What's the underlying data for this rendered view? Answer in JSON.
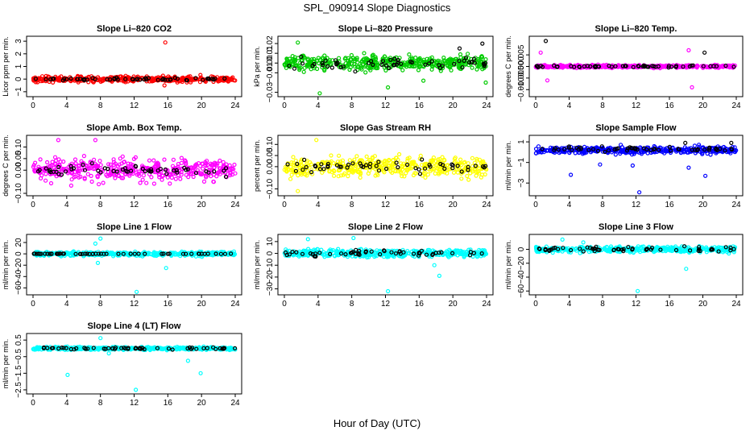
{
  "figure": {
    "title": "SPL_090914  Slope Diagnostics",
    "xlabel": "Hour of Day (UTC)"
  },
  "chart_data": [
    {
      "type": "scatter",
      "title": "Slope Li–820 CO2",
      "ylabel": "Licor ppm per min.",
      "color": "#ff0000",
      "xlim": [
        0,
        24
      ],
      "ylim": [
        -1.2,
        3.2
      ],
      "xticks": [
        "0",
        "4",
        "8",
        "12",
        "16",
        "20",
        "24"
      ],
      "xtick_values": [
        0,
        4,
        8,
        12,
        16,
        20,
        24
      ],
      "yticks": [
        "−1",
        "0",
        "1",
        "2",
        "3"
      ],
      "ytick_values": [
        -1,
        0,
        1,
        2,
        3
      ],
      "series": [
        {
          "name": "colored",
          "center": 0,
          "spread": 0.22,
          "outliers": [
            [
              15.7,
              2.9
            ],
            [
              15.6,
              -0.5
            ]
          ]
        },
        {
          "name": "black",
          "center": 0,
          "spread": 0.12,
          "outliers": []
        }
      ]
    },
    {
      "type": "scatter",
      "title": "Slope Li–820 Pressure",
      "ylabel": "kPa per min.",
      "color": "#00cc00",
      "xlim": [
        0,
        24
      ],
      "ylim": [
        -0.032,
        0.025
      ],
      "xticks": [
        "0",
        "4",
        "8",
        "12",
        "16",
        "20",
        "24"
      ],
      "xtick_values": [
        0,
        4,
        8,
        12,
        16,
        20,
        24
      ],
      "yticks": [
        "−0.03",
        "−0.01",
        "0.00",
        "0.01",
        "0.02"
      ],
      "ytick_values": [
        -0.03,
        -0.01,
        0,
        0.01,
        0.02
      ],
      "series": [
        {
          "name": "colored",
          "center": 0.0,
          "spread": 0.007,
          "outliers": [
            [
              4.2,
              -0.031
            ],
            [
              23.9,
              -0.02
            ],
            [
              12.3,
              -0.025
            ],
            [
              16.5,
              -0.018
            ],
            [
              1.6,
              0.021
            ]
          ]
        },
        {
          "name": "black",
          "center": 0.0,
          "spread": 0.006,
          "outliers": [
            [
              23.5,
              0.02
            ],
            [
              20.8,
              0.015
            ]
          ]
        }
      ]
    },
    {
      "type": "scatter",
      "title": "Slope Li–820 Temp.",
      "ylabel": "degrees C per min.",
      "color": "#ff00ff",
      "xlim": [
        0,
        24
      ],
      "ylim": [
        -0.012,
        0.012
      ],
      "xticks": [
        "0",
        "4",
        "8",
        "12",
        "16",
        "20",
        "24"
      ],
      "xtick_values": [
        0,
        4,
        8,
        12,
        16,
        20,
        24
      ],
      "yticks": [
        "−0.010",
        "−0.005",
        "0.000",
        "0.005"
      ],
      "ytick_values": [
        -0.01,
        -0.005,
        0,
        0.005
      ],
      "series": [
        {
          "name": "colored",
          "center": 0.0,
          "spread": 0.0006,
          "outliers": [
            [
              0.6,
              0.006
            ],
            [
              18.7,
              -0.009
            ],
            [
              1.4,
              -0.006
            ],
            [
              18.3,
              0.007
            ]
          ]
        },
        {
          "name": "black",
          "center": 0.0,
          "spread": 0.0004,
          "outliers": [
            [
              1.2,
              0.011
            ],
            [
              20.2,
              0.006
            ]
          ]
        }
      ]
    },
    {
      "type": "scatter",
      "title": "Slope Amb. Box Temp.",
      "ylabel": "degrees C per min.",
      "color": "#ff00ff",
      "xlim": [
        0,
        24
      ],
      "ylim": [
        -0.1,
        0.14
      ],
      "xticks": [
        "0",
        "4",
        "8",
        "12",
        "16",
        "20",
        "24"
      ],
      "xtick_values": [
        0,
        4,
        8,
        12,
        16,
        20,
        24
      ],
      "yticks": [
        "−0.10",
        "0.00",
        "0.05",
        "0.10"
      ],
      "ytick_values": [
        -0.1,
        0,
        0.05,
        0.1
      ],
      "series": [
        {
          "name": "colored",
          "center": 0.0,
          "spread": 0.045,
          "outliers": [
            [
              3.0,
              0.13
            ],
            [
              7.4,
              0.13
            ]
          ]
        },
        {
          "name": "black",
          "center": 0.0,
          "spread": 0.025,
          "outliers": []
        }
      ]
    },
    {
      "type": "scatter",
      "title": "Slope Gas Stream RH",
      "ylabel": "percent per min.",
      "color": "#ffff00",
      "xlim": [
        0,
        24
      ],
      "ylim": [
        -0.12,
        0.13
      ],
      "xticks": [
        "0",
        "4",
        "8",
        "12",
        "16",
        "20",
        "24"
      ],
      "xtick_values": [
        0,
        4,
        8,
        12,
        16,
        20,
        24
      ],
      "yticks": [
        "−0.10",
        "0.00",
        "0.05",
        "0.10"
      ],
      "ytick_values": [
        -0.1,
        0,
        0.05,
        0.1
      ],
      "series": [
        {
          "name": "colored",
          "center": 0.0,
          "spread": 0.045,
          "outliers": [
            [
              1.6,
              -0.11
            ],
            [
              3.8,
              0.12
            ]
          ]
        },
        {
          "name": "black",
          "center": 0.0,
          "spread": 0.025,
          "outliers": []
        }
      ]
    },
    {
      "type": "scatter",
      "title": "Slope Sample Flow",
      "ylabel": "ml/min per min.",
      "color": "#0000ff",
      "xlim": [
        0,
        24
      ],
      "ylim": [
        -4.0,
        1.4
      ],
      "xticks": [
        "0",
        "4",
        "8",
        "12",
        "16",
        "20",
        "24"
      ],
      "xtick_values": [
        0,
        4,
        8,
        12,
        16,
        20,
        24
      ],
      "yticks": [
        "−3",
        "−1",
        "1"
      ],
      "ytick_values": [
        -3,
        -1,
        1
      ],
      "series": [
        {
          "name": "colored",
          "center": 0.2,
          "spread": 0.35,
          "outliers": [
            [
              12.4,
              -3.9
            ],
            [
              20.3,
              -2.3
            ],
            [
              4.2,
              -2.2
            ],
            [
              7.7,
              -1.2
            ],
            [
              18.3,
              -1.5
            ],
            [
              11.6,
              -1.3
            ]
          ]
        },
        {
          "name": "black",
          "center": 0.3,
          "spread": 0.25,
          "outliers": [
            [
              23.4,
              0.9
            ],
            [
              17.9,
              0.9
            ]
          ]
        }
      ]
    },
    {
      "type": "scatter",
      "title": "Slope Line 1 Flow",
      "ylabel": "ml/min per min.",
      "color": "#00ffff",
      "xlim": [
        0,
        24
      ],
      "ylim": [
        -68,
        30
      ],
      "xticks": [
        "0",
        "4",
        "8",
        "12",
        "16",
        "20",
        "24"
      ],
      "xtick_values": [
        0,
        4,
        8,
        12,
        16,
        20,
        24
      ],
      "yticks": [
        "−60",
        "−40",
        "−20",
        "0",
        "20"
      ],
      "ytick_values": [
        -60,
        -40,
        -20,
        0,
        20
      ],
      "series": [
        {
          "name": "colored",
          "center": 0,
          "spread": 3.5,
          "outliers": [
            [
              12.3,
              -67
            ],
            [
              8.0,
              27
            ],
            [
              7.7,
              -16
            ],
            [
              15.8,
              -25
            ],
            [
              7.4,
              18
            ]
          ]
        },
        {
          "name": "black",
          "center": 0,
          "spread": 0.4,
          "outliers": []
        }
      ]
    },
    {
      "type": "scatter",
      "title": "Slope Line 2 Flow",
      "ylabel": "ml/min per min.",
      "color": "#00ffff",
      "xlim": [
        0,
        24
      ],
      "ylim": [
        -33,
        14
      ],
      "xticks": [
        "0",
        "4",
        "8",
        "12",
        "16",
        "20",
        "24"
      ],
      "xtick_values": [
        0,
        4,
        8,
        12,
        16,
        20,
        24
      ],
      "yticks": [
        "−30",
        "−20",
        "−10",
        "0",
        "10"
      ],
      "ytick_values": [
        -30,
        -20,
        -10,
        0,
        10
      ],
      "series": [
        {
          "name": "colored",
          "center": 0,
          "spread": 3.0,
          "outliers": [
            [
              12.3,
              -32
            ],
            [
              8.2,
              13
            ],
            [
              18.4,
              -19
            ],
            [
              2.8,
              12
            ],
            [
              17.8,
              -10
            ]
          ]
        },
        {
          "name": "black",
          "center": 0,
          "spread": 2.2,
          "outliers": []
        }
      ]
    },
    {
      "type": "scatter",
      "title": "Slope Line 3 Flow",
      "ylabel": "ml/min per min.",
      "color": "#00ffff",
      "xlim": [
        0,
        24
      ],
      "ylim": [
        -62,
        18
      ],
      "xticks": [
        "0",
        "4",
        "8",
        "12",
        "16",
        "20",
        "24"
      ],
      "xtick_values": [
        0,
        4,
        8,
        12,
        16,
        20,
        24
      ],
      "yticks": [
        "−60",
        "−40",
        "−20",
        "0"
      ],
      "ytick_values": [
        -60,
        -40,
        -20,
        0
      ],
      "series": [
        {
          "name": "colored",
          "center": 0,
          "spread": 4.0,
          "outliers": [
            [
              12.2,
              -60
            ],
            [
              18.0,
              -28
            ],
            [
              3.2,
              14
            ],
            [
              5.7,
              10
            ]
          ]
        },
        {
          "name": "black",
          "center": 0,
          "spread": 3.0,
          "outliers": []
        }
      ]
    },
    {
      "type": "scatter",
      "title": "Slope Line 4 (LT) Flow",
      "ylabel": "ml/min per min.",
      "color": "#00ffff",
      "xlim": [
        0,
        24
      ],
      "ylim": [
        -2.6,
        0.75
      ],
      "xticks": [
        "0",
        "4",
        "8",
        "12",
        "16",
        "20",
        "24"
      ],
      "xtick_values": [
        0,
        4,
        8,
        12,
        16,
        20,
        24
      ],
      "yticks": [
        "−2.5",
        "−1.5",
        "−0.5",
        "0.5"
      ],
      "ytick_values": [
        -2.5,
        -1.5,
        -0.5,
        0.5
      ],
      "series": [
        {
          "name": "colored",
          "center": 0,
          "spread": 0.09,
          "outliers": [
            [
              12.2,
              -2.5
            ],
            [
              4.1,
              -1.6
            ],
            [
              19.9,
              -1.5
            ],
            [
              8.0,
              0.62
            ],
            [
              18.4,
              -0.75
            ],
            [
              9.0,
              -0.3
            ]
          ]
        },
        {
          "name": "black",
          "center": 0,
          "spread": 0.06,
          "outliers": []
        }
      ]
    }
  ]
}
